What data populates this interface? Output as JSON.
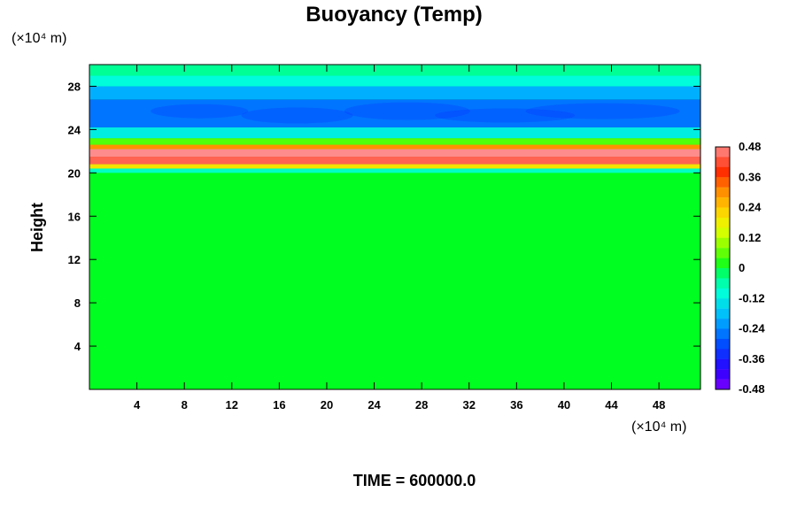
{
  "chart_data": {
    "type": "heatmap",
    "title": "Buoyancy (Temp)",
    "ylabel": "Height",
    "xlabel": "",
    "y_unit": "(×10⁴ m)",
    "x_unit": "(×10⁴ m)",
    "xlim": [
      0,
      51.5
    ],
    "ylim": [
      0,
      30
    ],
    "xticks": [
      4,
      8,
      12,
      16,
      20,
      24,
      28,
      32,
      36,
      40,
      44,
      48
    ],
    "yticks": [
      4,
      8,
      12,
      16,
      20,
      24,
      28
    ],
    "colorbar": {
      "min": -0.48,
      "max": 0.48,
      "labels": [
        0.48,
        0.36,
        0.24,
        0.12,
        0,
        -0.12,
        -0.24,
        -0.36,
        -0.48
      ]
    },
    "bands": [
      {
        "y0": 0,
        "y1": 20,
        "value": 0
      },
      {
        "y0": 20,
        "y1": 20.4,
        "value": -0.08
      },
      {
        "y0": 20.4,
        "y1": 20.8,
        "value": 0.2
      },
      {
        "y0": 20.8,
        "y1": 21.5,
        "value": 0.44
      },
      {
        "y0": 21.5,
        "y1": 22.2,
        "value": 0.48
      },
      {
        "y0": 22.2,
        "y1": 22.6,
        "value": 0.3
      },
      {
        "y0": 22.6,
        "y1": 23.2,
        "value": 0.05
      },
      {
        "y0": 23.2,
        "y1": 24.2,
        "value": -0.12
      },
      {
        "y0": 24.2,
        "y1": 26.8,
        "value": -0.26
      },
      {
        "y0": 26.8,
        "y1": 28,
        "value": -0.2
      },
      {
        "y0": 28,
        "y1": 29,
        "value": -0.1
      },
      {
        "y0": 29,
        "y1": 30,
        "value": -0.04
      }
    ],
    "time_label": "TIME = 600000.0"
  }
}
